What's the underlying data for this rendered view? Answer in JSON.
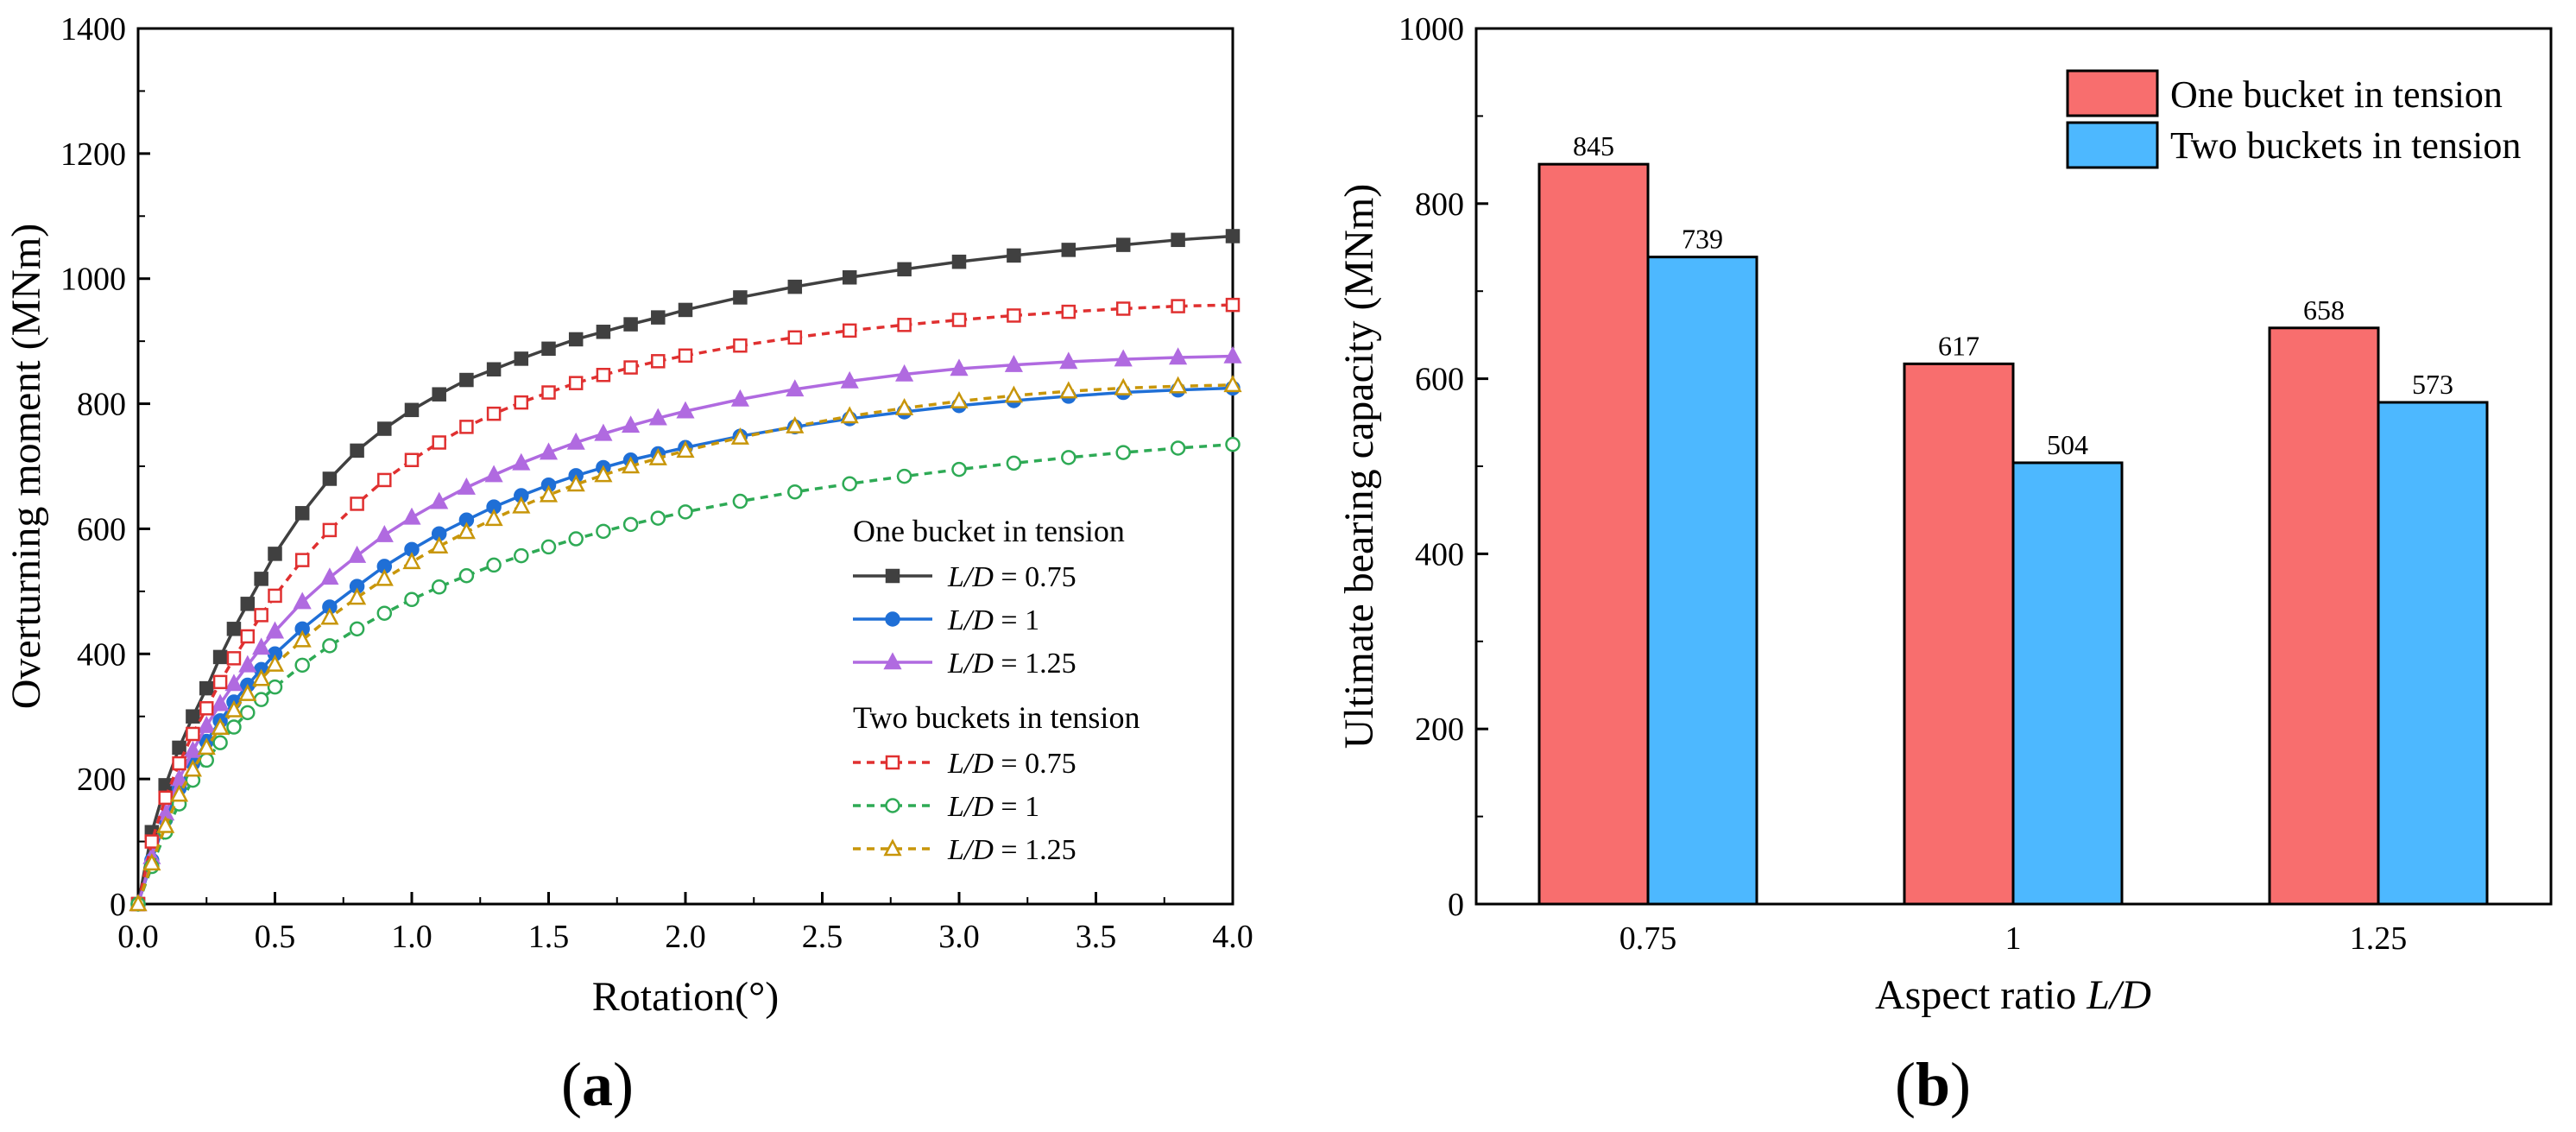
{
  "figure": {
    "panel_a": "a",
    "panel_b": "b"
  },
  "chart_data": [
    {
      "type": "line",
      "xlabel": "Rotation(°)",
      "ylabel": "Overturning moment (MNm)",
      "xlim": [
        0,
        4
      ],
      "ylim": [
        0,
        1400
      ],
      "x_ticks": [
        "0.0",
        "0.5",
        "1.0",
        "1.5",
        "2.0",
        "2.5",
        "3.0",
        "3.5",
        "4.0"
      ],
      "y_ticks": [
        "0",
        "200",
        "400",
        "600",
        "800",
        "1000",
        "1200",
        "1400"
      ],
      "legend": {
        "group1": "One bucket in tension",
        "group2": "Two buckets in tension",
        "ld_prefix": "L/D",
        "ld_italic_part": "L/D",
        "entries": [
          " = 0.75",
          " = 1",
          " = 1.25",
          " = 0.75",
          " = 1",
          " = 1.25"
        ]
      },
      "x": [
        0,
        0.05,
        0.1,
        0.15,
        0.2,
        0.25,
        0.3,
        0.35,
        0.4,
        0.45,
        0.5,
        0.6,
        0.7,
        0.8,
        0.9,
        1.0,
        1.1,
        1.2,
        1.3,
        1.4,
        1.5,
        1.6,
        1.7,
        1.8,
        1.9,
        2.0,
        2.2,
        2.4,
        2.6,
        2.8,
        3.0,
        3.2,
        3.4,
        3.6,
        3.8,
        4.0
      ],
      "series": [
        {
          "name": "L/D = 0.75 (one bucket)",
          "color": "#404040",
          "marker": "square-filled",
          "dash": "solid",
          "values": [
            0,
            115,
            190,
            250,
            300,
            345,
            395,
            440,
            480,
            520,
            560,
            625,
            680,
            725,
            760,
            790,
            815,
            838,
            855,
            872,
            888,
            903,
            915,
            927,
            938,
            950,
            970,
            987,
            1002,
            1015,
            1027,
            1037,
            1046,
            1054,
            1062,
            1068
          ]
        },
        {
          "name": "L/D = 1 (one bucket)",
          "color": "#1f6fd6",
          "marker": "circle-filled",
          "dash": "solid",
          "values": [
            0,
            70,
            135,
            185,
            225,
            260,
            293,
            323,
            350,
            375,
            400,
            440,
            475,
            508,
            540,
            567,
            592,
            614,
            635,
            653,
            670,
            685,
            698,
            710,
            720,
            730,
            748,
            763,
            776,
            787,
            797,
            805,
            812,
            818,
            822,
            825
          ]
        },
        {
          "name": "L/D = 1.25 (one bucket)",
          "color": "#b06ae0",
          "marker": "triangle-filled",
          "dash": "solid",
          "values": [
            0,
            75,
            145,
            200,
            245,
            285,
            320,
            352,
            382,
            410,
            436,
            483,
            522,
            557,
            590,
            618,
            643,
            666,
            686,
            705,
            722,
            738,
            752,
            765,
            777,
            788,
            807,
            823,
            836,
            847,
            856,
            862,
            867,
            871,
            874,
            876
          ]
        },
        {
          "name": "L/D = 0.75 (two buckets)",
          "color": "#e03030",
          "marker": "square-open",
          "dash": "dashed",
          "values": [
            0,
            100,
            170,
            225,
            272,
            313,
            355,
            393,
            428,
            462,
            493,
            550,
            598,
            640,
            678,
            710,
            738,
            763,
            784,
            802,
            818,
            833,
            846,
            858,
            868,
            877,
            893,
            906,
            917,
            926,
            934,
            941,
            947,
            952,
            956,
            958
          ]
        },
        {
          "name": "L/D = 1 (two buckets)",
          "color": "#2eaa55",
          "marker": "circle-open",
          "dash": "dashed",
          "values": [
            0,
            60,
            115,
            160,
            198,
            230,
            258,
            283,
            306,
            327,
            347,
            382,
            413,
            440,
            465,
            487,
            507,
            525,
            542,
            557,
            571,
            584,
            596,
            607,
            617,
            627,
            644,
            659,
            672,
            684,
            695,
            705,
            714,
            722,
            729,
            735
          ]
        },
        {
          "name": "L/D = 1.25 (two buckets)",
          "color": "#c8960a",
          "marker": "triangle-open",
          "dash": "dashed",
          "values": [
            0,
            65,
            125,
            175,
            215,
            250,
            282,
            310,
            336,
            360,
            383,
            422,
            458,
            490,
            520,
            547,
            572,
            595,
            616,
            636,
            654,
            671,
            686,
            700,
            713,
            725,
            746,
            764,
            780,
            793,
            804,
            813,
            820,
            825,
            828,
            830
          ]
        }
      ]
    },
    {
      "type": "bar",
      "xlabel": "Aspect ratio L/D",
      "xlabel_plain": "Aspect ratio ",
      "xlabel_italic": "L/D",
      "ylabel": "Ultimate bearing capacity (MNm)",
      "ylim": [
        0,
        1000
      ],
      "y_ticks": [
        "0",
        "200",
        "400",
        "600",
        "800",
        "1000"
      ],
      "categories": [
        "0.75",
        "1",
        "1.25"
      ],
      "series": [
        {
          "name": "One bucket in tension",
          "color": "#f86e6e",
          "values": [
            845,
            617,
            658
          ]
        },
        {
          "name": "Two buckets in tension",
          "color": "#4db8ff",
          "values": [
            739,
            504,
            573
          ]
        }
      ],
      "data_labels": {
        "one": [
          "845",
          "617",
          "658"
        ],
        "two": [
          "739",
          "504",
          "573"
        ]
      }
    }
  ]
}
